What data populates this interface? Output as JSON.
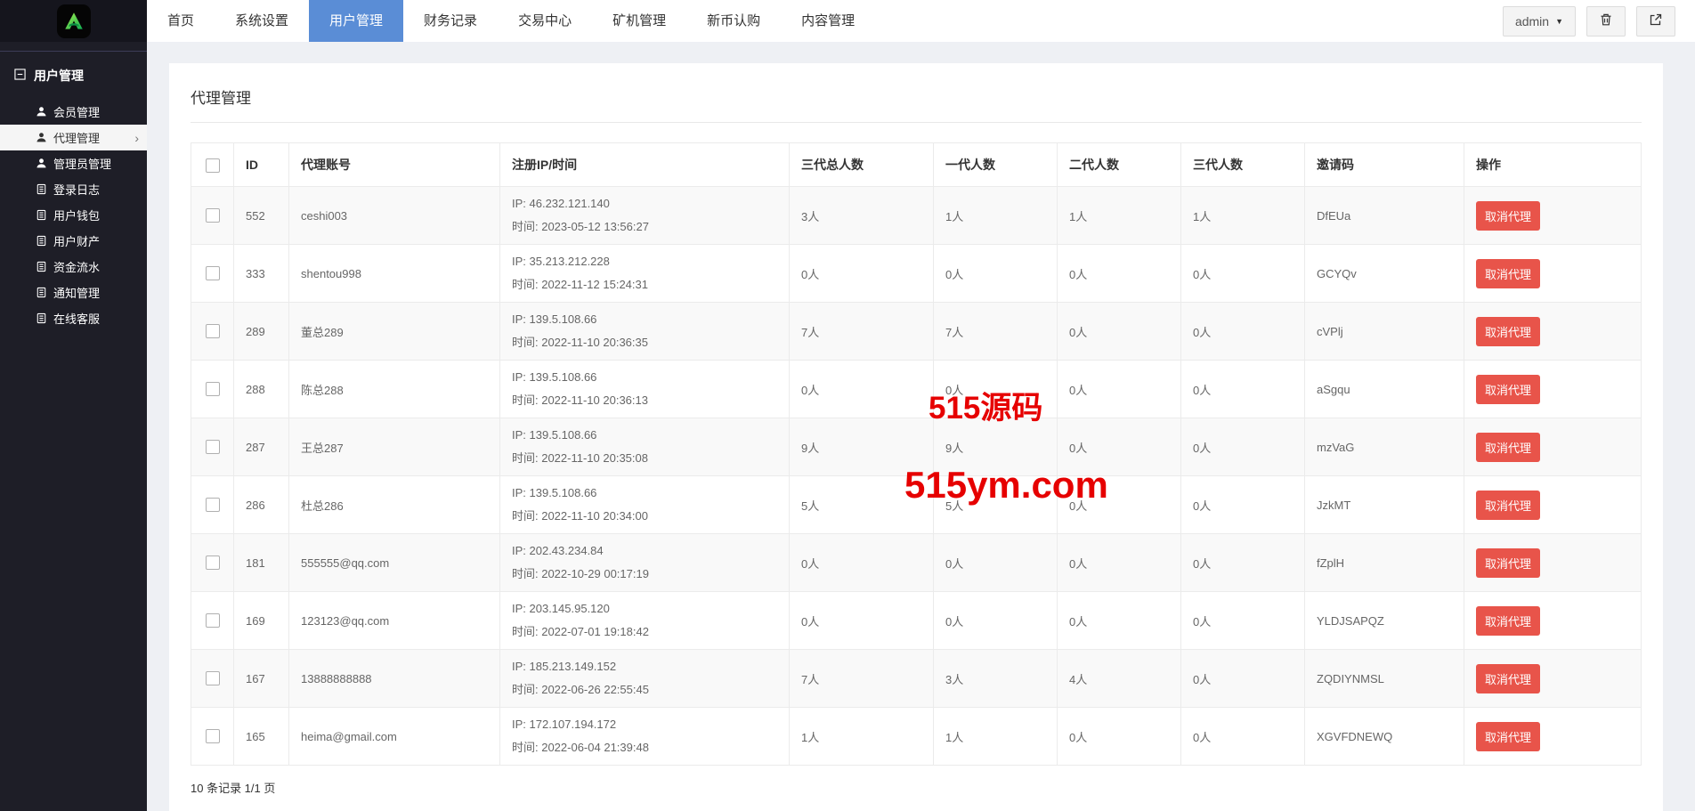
{
  "colors": {
    "accent-blue": "#5a8dd6",
    "danger-red": "#e8544a",
    "watermark-red": "#e60000",
    "sidebar-bg": "#1e1e27",
    "header-dark": "#15151d",
    "page-bg": "#eef0f4",
    "logo-green": "#2ecc5e"
  },
  "header": {
    "nav": [
      {
        "label": "首页",
        "active": false
      },
      {
        "label": "系统设置",
        "active": false
      },
      {
        "label": "用户管理",
        "active": true
      },
      {
        "label": "财务记录",
        "active": false
      },
      {
        "label": "交易中心",
        "active": false
      },
      {
        "label": "矿机管理",
        "active": false
      },
      {
        "label": "新币认购",
        "active": false
      },
      {
        "label": "内容管理",
        "active": false
      }
    ],
    "user_label": "admin",
    "icons": [
      "trash-icon",
      "logout-icon"
    ]
  },
  "sidebar": {
    "group_title": "用户管理",
    "group_icon": "minus-square-icon",
    "items": [
      {
        "label": "会员管理",
        "icon": "user-icon",
        "active": false
      },
      {
        "label": "代理管理",
        "icon": "user-icon",
        "active": true
      },
      {
        "label": "管理员管理",
        "icon": "user-icon",
        "active": false
      },
      {
        "label": "登录日志",
        "icon": "file-icon",
        "active": false
      },
      {
        "label": "用户钱包",
        "icon": "file-icon",
        "active": false
      },
      {
        "label": "用户财产",
        "icon": "file-icon",
        "active": false
      },
      {
        "label": "资金流水",
        "icon": "file-icon",
        "active": false
      },
      {
        "label": "通知管理",
        "icon": "file-icon",
        "active": false
      },
      {
        "label": "在线客服",
        "icon": "file-icon",
        "active": false
      }
    ]
  },
  "main": {
    "card_title": "代理管理",
    "table": {
      "columns": [
        "ID",
        "代理账号",
        "注册IP/时间",
        "三代总人数",
        "一代人数",
        "二代人数",
        "三代人数",
        "邀请码",
        "操作"
      ],
      "ip_label": "IP:",
      "time_label": "时间:",
      "action_label": "取消代理",
      "rows": [
        {
          "id": "552",
          "account": "ceshi003",
          "ip": "46.232.121.140",
          "time": "2023-05-12 13:56:27",
          "total": "3人",
          "gen1": "1人",
          "gen2": "1人",
          "gen3": "1人",
          "code": "DfEUa"
        },
        {
          "id": "333",
          "account": "shentou998",
          "ip": "35.213.212.228",
          "time": "2022-11-12 15:24:31",
          "total": "0人",
          "gen1": "0人",
          "gen2": "0人",
          "gen3": "0人",
          "code": "GCYQv"
        },
        {
          "id": "289",
          "account": "董总289",
          "ip": "139.5.108.66",
          "time": "2022-11-10 20:36:35",
          "total": "7人",
          "gen1": "7人",
          "gen2": "0人",
          "gen3": "0人",
          "code": "cVPlj"
        },
        {
          "id": "288",
          "account": "陈总288",
          "ip": "139.5.108.66",
          "time": "2022-11-10 20:36:13",
          "total": "0人",
          "gen1": "0人",
          "gen2": "0人",
          "gen3": "0人",
          "code": "aSgqu"
        },
        {
          "id": "287",
          "account": "王总287",
          "ip": "139.5.108.66",
          "time": "2022-11-10 20:35:08",
          "total": "9人",
          "gen1": "9人",
          "gen2": "0人",
          "gen3": "0人",
          "code": "mzVaG"
        },
        {
          "id": "286",
          "account": "杜总286",
          "ip": "139.5.108.66",
          "time": "2022-11-10 20:34:00",
          "total": "5人",
          "gen1": "5人",
          "gen2": "0人",
          "gen3": "0人",
          "code": "JzkMT"
        },
        {
          "id": "181",
          "account": "555555@qq.com",
          "ip": "202.43.234.84",
          "time": "2022-10-29 00:17:19",
          "total": "0人",
          "gen1": "0人",
          "gen2": "0人",
          "gen3": "0人",
          "code": "fZplH"
        },
        {
          "id": "169",
          "account": "123123@qq.com",
          "ip": "203.145.95.120",
          "time": "2022-07-01 19:18:42",
          "total": "0人",
          "gen1": "0人",
          "gen2": "0人",
          "gen3": "0人",
          "code": "YLDJSAPQZ"
        },
        {
          "id": "167",
          "account": "13888888888",
          "ip": "185.213.149.152",
          "time": "2022-06-26 22:55:45",
          "total": "7人",
          "gen1": "3人",
          "gen2": "4人",
          "gen3": "0人",
          "code": "ZQDIYNMSL"
        },
        {
          "id": "165",
          "account": "heima@gmail.com",
          "ip": "172.107.194.172",
          "time": "2022-06-04 21:39:48",
          "total": "1人",
          "gen1": "1人",
          "gen2": "0人",
          "gen3": "0人",
          "code": "XGVFDNEWQ"
        }
      ]
    },
    "footer_text": "10 条记录 1/1 页"
  },
  "watermark": {
    "line1": "515源码",
    "line2": "515ym.com"
  }
}
